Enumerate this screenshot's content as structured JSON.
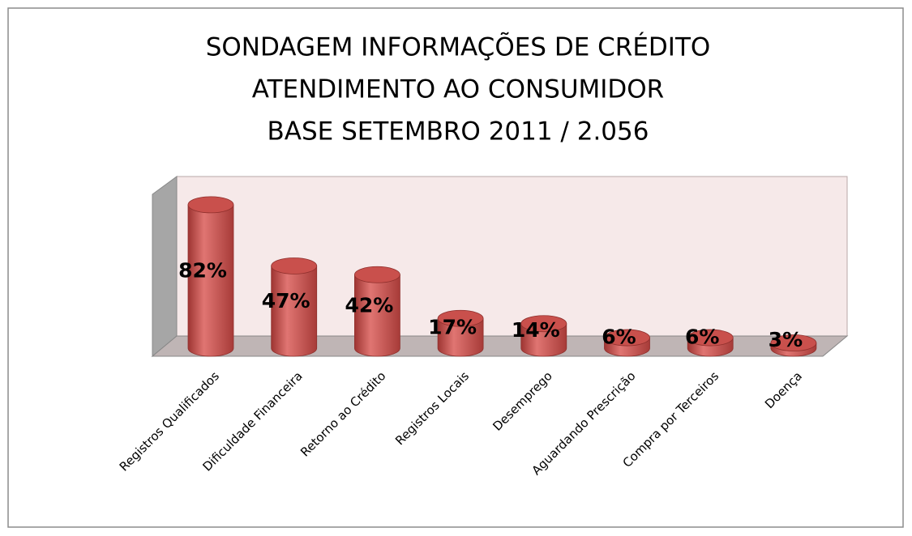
{
  "chart_data": {
    "type": "bar3d",
    "title": [
      "SONDAGEM INFORMAÇÕES DE CRÉDITO",
      "ATENDIMENTO AO CONSUMIDOR",
      "BASE SETEMBRO 2011 / 2.056"
    ],
    "categories": [
      "Registros Qualificados",
      "Dificuldade Financeira",
      "Retorno ao Crédito",
      "Registros Locais",
      "Desemprego",
      "Aguardando Prescrição",
      "Compra por Terceiros",
      "Doença"
    ],
    "values": [
      82,
      47,
      42,
      17,
      14,
      6,
      6,
      3
    ],
    "value_labels": [
      "82%",
      "47%",
      "42%",
      "17%",
      "14%",
      "6%",
      "6%",
      "3%"
    ],
    "color": "#c0504d"
  }
}
